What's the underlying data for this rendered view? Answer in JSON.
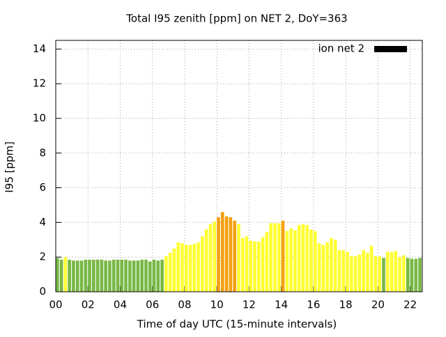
{
  "chart_data": {
    "type": "bar",
    "title": "Total I95 zenith [ppm] on NET 2, DoY=363",
    "xlabel": "Time of day UTC (15-minute intervals)",
    "ylabel": "I95 [ppm]",
    "x": [
      0,
      0.25,
      0.5,
      0.75,
      1,
      1.25,
      1.5,
      1.75,
      2,
      2.25,
      2.5,
      2.75,
      3,
      3.25,
      3.5,
      3.75,
      4,
      4.25,
      4.5,
      4.75,
      5,
      5.25,
      5.5,
      5.75,
      6,
      6.25,
      6.5,
      6.75,
      7,
      7.25,
      7.5,
      7.75,
      8,
      8.25,
      8.5,
      8.75,
      9,
      9.25,
      9.5,
      9.75,
      10,
      10.25,
      10.5,
      10.75,
      11,
      11.25,
      11.5,
      11.75,
      12,
      12.25,
      12.5,
      12.75,
      13,
      13.25,
      13.5,
      13.75,
      14,
      14.25,
      14.5,
      14.75,
      15,
      15.25,
      15.5,
      15.75,
      16,
      16.25,
      16.5,
      16.75,
      17,
      17.25,
      17.5,
      17.75,
      18,
      18.25,
      18.5,
      18.75,
      19,
      19.25,
      19.5,
      19.75,
      20,
      20.25,
      20.5,
      20.75,
      21,
      21.25,
      21.5,
      21.75,
      22,
      22.25,
      22.5
    ],
    "series": [
      {
        "name": "ion net 2",
        "color": "#000000",
        "values": [
          1.95,
          1.85,
          2.0,
          1.85,
          1.8,
          1.8,
          1.8,
          1.85,
          1.85,
          1.85,
          1.85,
          1.85,
          1.8,
          1.8,
          1.85,
          1.85,
          1.85,
          1.85,
          1.8,
          1.8,
          1.8,
          1.85,
          1.85,
          1.75,
          1.85,
          1.8,
          1.85,
          2.05,
          2.25,
          2.5,
          2.85,
          2.8,
          2.7,
          2.7,
          2.75,
          2.85,
          3.2,
          3.6,
          3.9,
          4.05,
          4.3,
          4.6,
          4.35,
          4.3,
          4.1,
          3.9,
          3.1,
          3.2,
          2.95,
          2.9,
          2.9,
          3.15,
          3.45,
          3.95,
          3.95,
          3.95,
          4.1,
          3.5,
          3.65,
          3.55,
          3.85,
          3.9,
          3.85,
          3.6,
          3.5,
          2.8,
          2.7,
          2.85,
          3.1,
          3.0,
          2.4,
          2.4,
          2.3,
          2.05,
          2.05,
          2.15,
          2.4,
          2.25,
          2.65,
          2.05,
          2.05,
          1.95,
          2.3,
          2.3,
          2.35,
          2.0,
          2.1,
          1.95,
          1.9,
          1.9,
          1.95
        ],
        "bar_colors": [
          "#77b843",
          "#77b843",
          "#ffff33",
          "#77b843",
          "#77b843",
          "#77b843",
          "#77b843",
          "#77b843",
          "#77b843",
          "#77b843",
          "#77b843",
          "#77b843",
          "#77b843",
          "#77b843",
          "#77b843",
          "#77b843",
          "#77b843",
          "#77b843",
          "#77b843",
          "#77b843",
          "#77b843",
          "#77b843",
          "#77b843",
          "#77b843",
          "#77b843",
          "#77b843",
          "#77b843",
          "#ffff33",
          "#ffff33",
          "#ffff33",
          "#ffff33",
          "#ffff33",
          "#ffff33",
          "#ffff33",
          "#ffff33",
          "#ffff33",
          "#ffff33",
          "#ffff33",
          "#ffff33",
          "#ffff33",
          "#f4a011",
          "#f4a011",
          "#f4a011",
          "#f4a011",
          "#f4a011",
          "#ffff33",
          "#ffff33",
          "#ffff33",
          "#ffff33",
          "#ffff33",
          "#ffff33",
          "#ffff33",
          "#ffff33",
          "#ffff33",
          "#ffff33",
          "#ffff33",
          "#f4a011",
          "#ffff33",
          "#ffff33",
          "#ffff33",
          "#ffff33",
          "#ffff33",
          "#ffff33",
          "#ffff33",
          "#ffff33",
          "#ffff33",
          "#ffff33",
          "#ffff33",
          "#ffff33",
          "#ffff33",
          "#ffff33",
          "#ffff33",
          "#ffff33",
          "#ffff33",
          "#ffff33",
          "#ffff33",
          "#ffff33",
          "#ffff33",
          "#ffff33",
          "#ffff33",
          "#ffff33",
          "#77b843",
          "#ffff33",
          "#ffff33",
          "#ffff33",
          "#ffff33",
          "#ffff33",
          "#77b843",
          "#77b843",
          "#77b843",
          "#77b843"
        ]
      }
    ],
    "bar_width": 0.25,
    "xlim": [
      0,
      22.75
    ],
    "xticks": [
      {
        "value": 0,
        "label": "00"
      },
      {
        "value": 2,
        "label": "02"
      },
      {
        "value": 4,
        "label": "04"
      },
      {
        "value": 6,
        "label": "06"
      },
      {
        "value": 8,
        "label": "08"
      },
      {
        "value": 10,
        "label": "10"
      },
      {
        "value": 12,
        "label": "12"
      },
      {
        "value": 14,
        "label": "14"
      },
      {
        "value": 16,
        "label": "16"
      },
      {
        "value": 18,
        "label": "18"
      },
      {
        "value": 20,
        "label": "20"
      },
      {
        "value": 22,
        "label": "22"
      }
    ],
    "ylim": [
      0,
      14.5
    ],
    "yticks": [
      0,
      2,
      4,
      6,
      8,
      10,
      12,
      14
    ],
    "grid": true,
    "legend": "top-right"
  }
}
